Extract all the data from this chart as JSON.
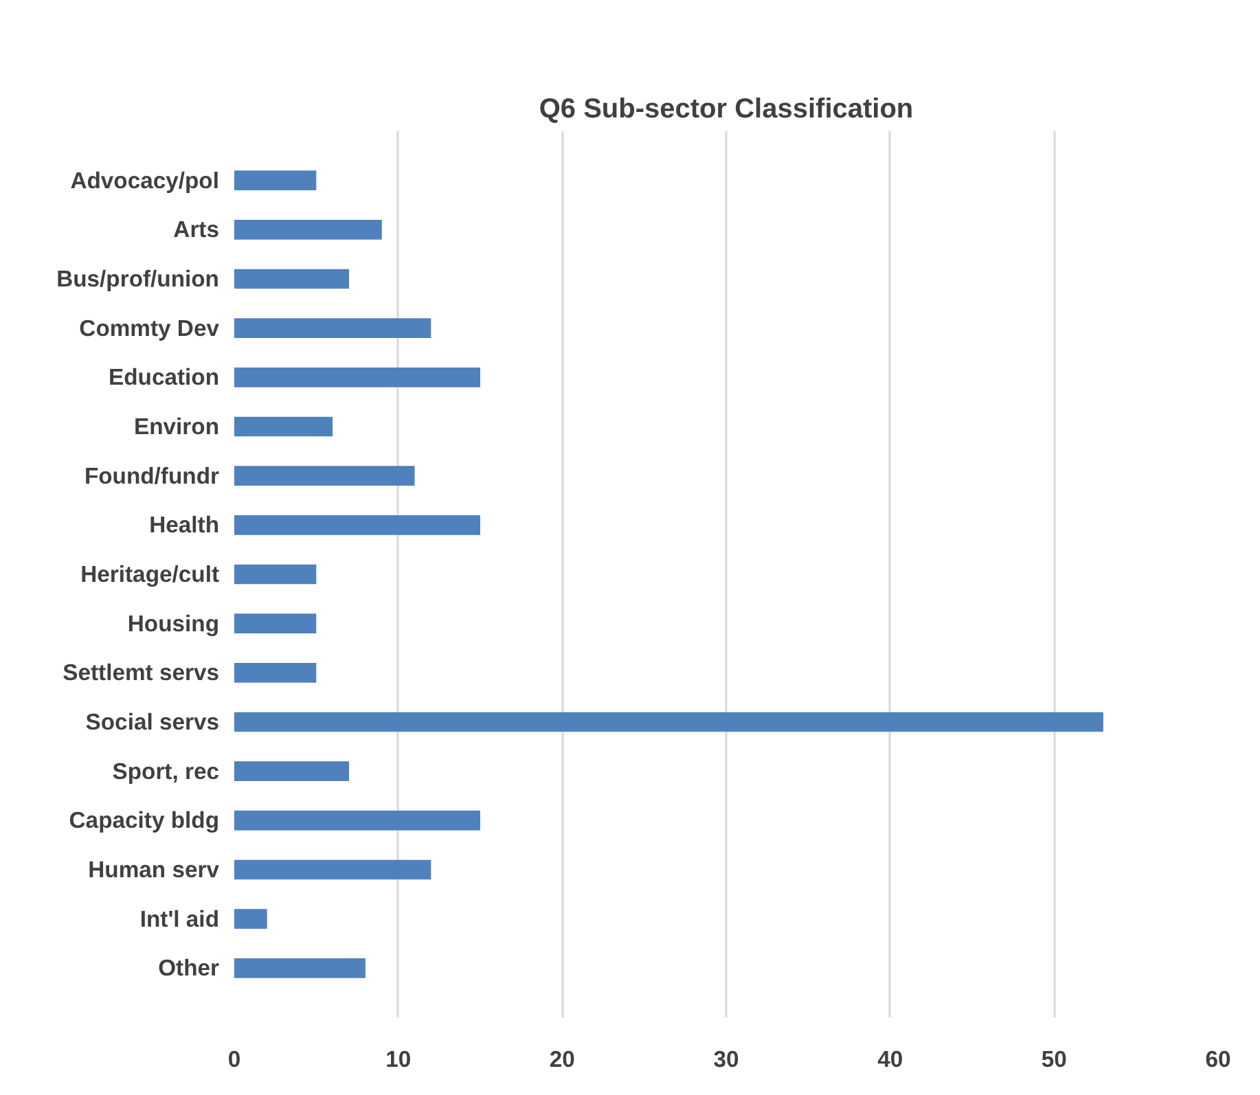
{
  "chart_data": {
    "type": "bar",
    "orientation": "horizontal",
    "title": "Q6 Sub-sector Classification",
    "categories": [
      "Advocacy/pol",
      "Arts",
      "Bus/prof/union",
      "Commty Dev",
      "Education",
      "Environ",
      "Found/fundr",
      "Health",
      "Heritage/cult",
      "Housing",
      "Settlemt servs",
      "Social servs",
      "Sport, rec",
      "Capacity bldg",
      "Human serv",
      "Int'l aid",
      "Other"
    ],
    "values": [
      5,
      9,
      7,
      12,
      15,
      6,
      11,
      15,
      5,
      5,
      5,
      53,
      7,
      15,
      12,
      2,
      8
    ],
    "color": "#4f81bd",
    "xlim": [
      0,
      60
    ],
    "xticks": [
      0,
      10,
      20,
      30,
      40,
      50,
      60
    ],
    "grid": "x"
  }
}
